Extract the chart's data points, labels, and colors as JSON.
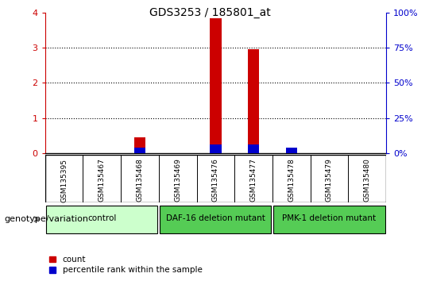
{
  "title": "GDS3253 / 185801_at",
  "samples": [
    "GSM135395",
    "GSM135467",
    "GSM135468",
    "GSM135469",
    "GSM135476",
    "GSM135477",
    "GSM135478",
    "GSM135479",
    "GSM135480"
  ],
  "count_values": [
    0,
    0,
    0.45,
    0,
    3.85,
    2.95,
    0,
    0,
    0
  ],
  "percentile_values": [
    0,
    0,
    4,
    0,
    6,
    6,
    4,
    0,
    0
  ],
  "groups": [
    {
      "label": "control",
      "start": 0,
      "end": 3,
      "color": "#ccffcc"
    },
    {
      "label": "DAF-16 deletion mutant",
      "start": 3,
      "end": 6,
      "color": "#55cc55"
    },
    {
      "label": "PMK-1 deletion mutant",
      "start": 6,
      "end": 9,
      "color": "#55cc55"
    }
  ],
  "ylim_left": [
    0,
    4
  ],
  "ylim_right": [
    0,
    100
  ],
  "yticks_left": [
    0,
    1,
    2,
    3,
    4
  ],
  "yticks_right": [
    0,
    25,
    50,
    75,
    100
  ],
  "count_color": "#cc0000",
  "percentile_color": "#0000cc",
  "left_axis_color": "#cc0000",
  "right_axis_color": "#0000cc",
  "background_color": "#ffffff",
  "plot_bg_color": "#ffffff",
  "grid_color": "#000000",
  "label_row_color": "#cccccc",
  "legend_count_label": "count",
  "legend_percentile_label": "percentile rank within the sample"
}
